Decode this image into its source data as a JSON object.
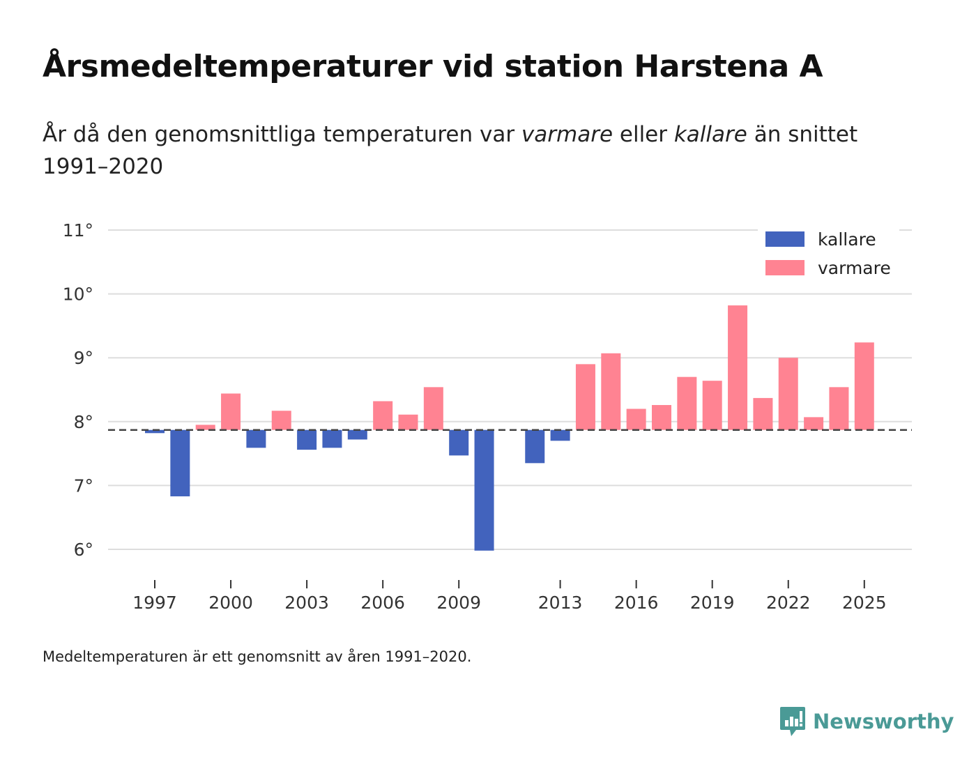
{
  "title": "Årsmedeltemperaturer vid station Harstena A",
  "subtitle": {
    "part1": "År då den genomsnittliga temperaturen var ",
    "warmer_word": "varmare",
    "part2": " eller ",
    "colder_word": "kallare",
    "part3": " än snittet 1991–2020"
  },
  "note": "Medeltemperaturen är ett genomsnitt av åren 1991–2020.",
  "brand": {
    "name": "Newsworthy",
    "color": "#4a9a96",
    "icon": "newsworthy-logo-icon"
  },
  "chart_data": {
    "type": "bar",
    "baseline": 7.87,
    "baseline_label": "snittet 1991–2020",
    "ylim": [
      5.75,
      11.35
    ],
    "yticks": [
      6,
      7,
      8,
      9,
      10,
      11
    ],
    "ytick_suffix": "°",
    "xticks": [
      1997,
      2000,
      2003,
      2006,
      2009,
      2013,
      2016,
      2019,
      2022,
      2025
    ],
    "xlim": [
      1995.5,
      2027.2
    ],
    "colors": {
      "kallare": "#4263bd",
      "varmare": "#ff8392",
      "grid": "#dddddd",
      "baseline": "#444444",
      "axis_text": "#333333"
    },
    "legend": [
      {
        "key": "kallare",
        "label": "kallare"
      },
      {
        "key": "varmare",
        "label": "varmare"
      }
    ],
    "legend_position": "top-right",
    "series": [
      {
        "year": 1997,
        "value": 7.82
      },
      {
        "year": 1998,
        "value": 6.83
      },
      {
        "year": 1999,
        "value": 7.95
      },
      {
        "year": 2000,
        "value": 8.44
      },
      {
        "year": 2001,
        "value": 7.59
      },
      {
        "year": 2002,
        "value": 8.17
      },
      {
        "year": 2003,
        "value": 7.56
      },
      {
        "year": 2004,
        "value": 7.59
      },
      {
        "year": 2005,
        "value": 7.72
      },
      {
        "year": 2006,
        "value": 8.32
      },
      {
        "year": 2007,
        "value": 8.11
      },
      {
        "year": 2008,
        "value": 8.54
      },
      {
        "year": 2009,
        "value": 7.47
      },
      {
        "year": 2010,
        "value": 5.98
      },
      {
        "year": 2012,
        "value": 7.35
      },
      {
        "year": 2013,
        "value": 7.7
      },
      {
        "year": 2014,
        "value": 8.9
      },
      {
        "year": 2015,
        "value": 9.07
      },
      {
        "year": 2016,
        "value": 8.2
      },
      {
        "year": 2017,
        "value": 8.26
      },
      {
        "year": 2018,
        "value": 8.7
      },
      {
        "year": 2019,
        "value": 8.64
      },
      {
        "year": 2020,
        "value": 9.82
      },
      {
        "year": 2021,
        "value": 8.37
      },
      {
        "year": 2022,
        "value": 9.0
      },
      {
        "year": 2023,
        "value": 8.07
      },
      {
        "year": 2024,
        "value": 8.54
      },
      {
        "year": 2025,
        "value": 9.24
      }
    ]
  }
}
